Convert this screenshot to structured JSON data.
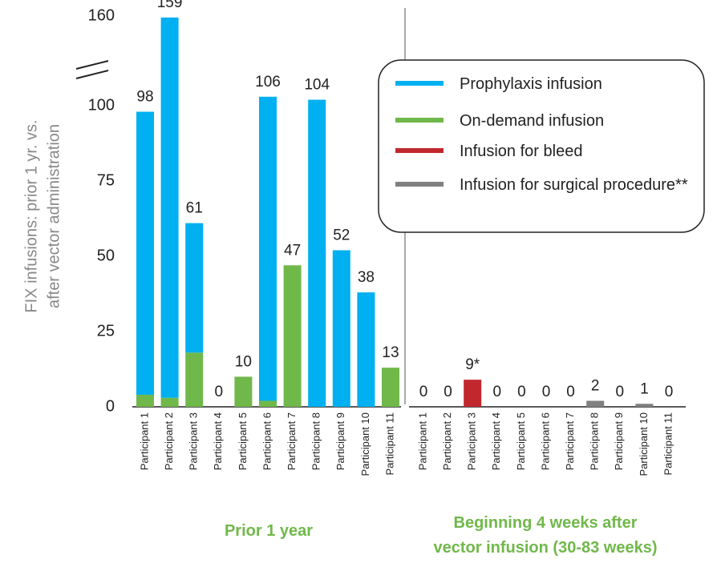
{
  "chart_data": {
    "type": "bar",
    "stacked": true,
    "ylabel": [
      "FIX infusions: prior 1 yr. vs.",
      "after vector administration"
    ],
    "ylim": [
      0,
      160
    ],
    "yticks": [
      0,
      25,
      50,
      75,
      100,
      160
    ],
    "series": [
      {
        "name": "Prophylaxis infusion",
        "color": "#00b0f0"
      },
      {
        "name": "On-demand infusion",
        "color": "#70b84a"
      },
      {
        "name": "Infusion for bleed",
        "color": "#c0282d"
      },
      {
        "name": "Infusion for surgical procedure**",
        "color": "#808080"
      }
    ],
    "panels": [
      {
        "title": "Prior 1 year",
        "categories": [
          "Participant 1",
          "Participant 2",
          "Participant 3",
          "Participant 4",
          "Participant 5",
          "Participant 6",
          "Participant 7",
          "Participant 8",
          "Participant 9",
          "Participant 10",
          "Participant 11"
        ],
        "values": [
          [
            94,
            156,
            43,
            0,
            0,
            104,
            0,
            104,
            52,
            38,
            0
          ],
          [
            4,
            3,
            18,
            0,
            10,
            2,
            47,
            0,
            0,
            0,
            13
          ],
          [
            0,
            0,
            0,
            0,
            0,
            0,
            0,
            0,
            0,
            0,
            0
          ],
          [
            0,
            0,
            0,
            0,
            0,
            0,
            0,
            0,
            0,
            0,
            0
          ]
        ],
        "totals": [
          98,
          159,
          61,
          0,
          10,
          106,
          47,
          104,
          52,
          38,
          13
        ]
      },
      {
        "title": "Beginning 4 weeks after vector infusion (30-83 weeks)",
        "categories": [
          "Participant 1",
          "Participant 2",
          "Participant 3",
          "Participant 4",
          "Participant 5",
          "Participant 6",
          "Participant 7",
          "Participant 8",
          "Participant 9",
          "Participant 10",
          "Participant 11"
        ],
        "values": [
          [
            0,
            0,
            0,
            0,
            0,
            0,
            0,
            0,
            0,
            0,
            0
          ],
          [
            0,
            0,
            0,
            0,
            0,
            0,
            0,
            0,
            0,
            0,
            0
          ],
          [
            0,
            0,
            9,
            0,
            0,
            0,
            0,
            0,
            0,
            0,
            0
          ],
          [
            0,
            0,
            0,
            0,
            0,
            0,
            0,
            2,
            0,
            1,
            0
          ]
        ],
        "totals": [
          0,
          0,
          9,
          0,
          0,
          0,
          0,
          2,
          0,
          1,
          0
        ],
        "value_labels": [
          "0",
          "0",
          "9*",
          "0",
          "0",
          "0",
          "0",
          "2",
          "0",
          "1",
          "0"
        ]
      }
    ]
  }
}
